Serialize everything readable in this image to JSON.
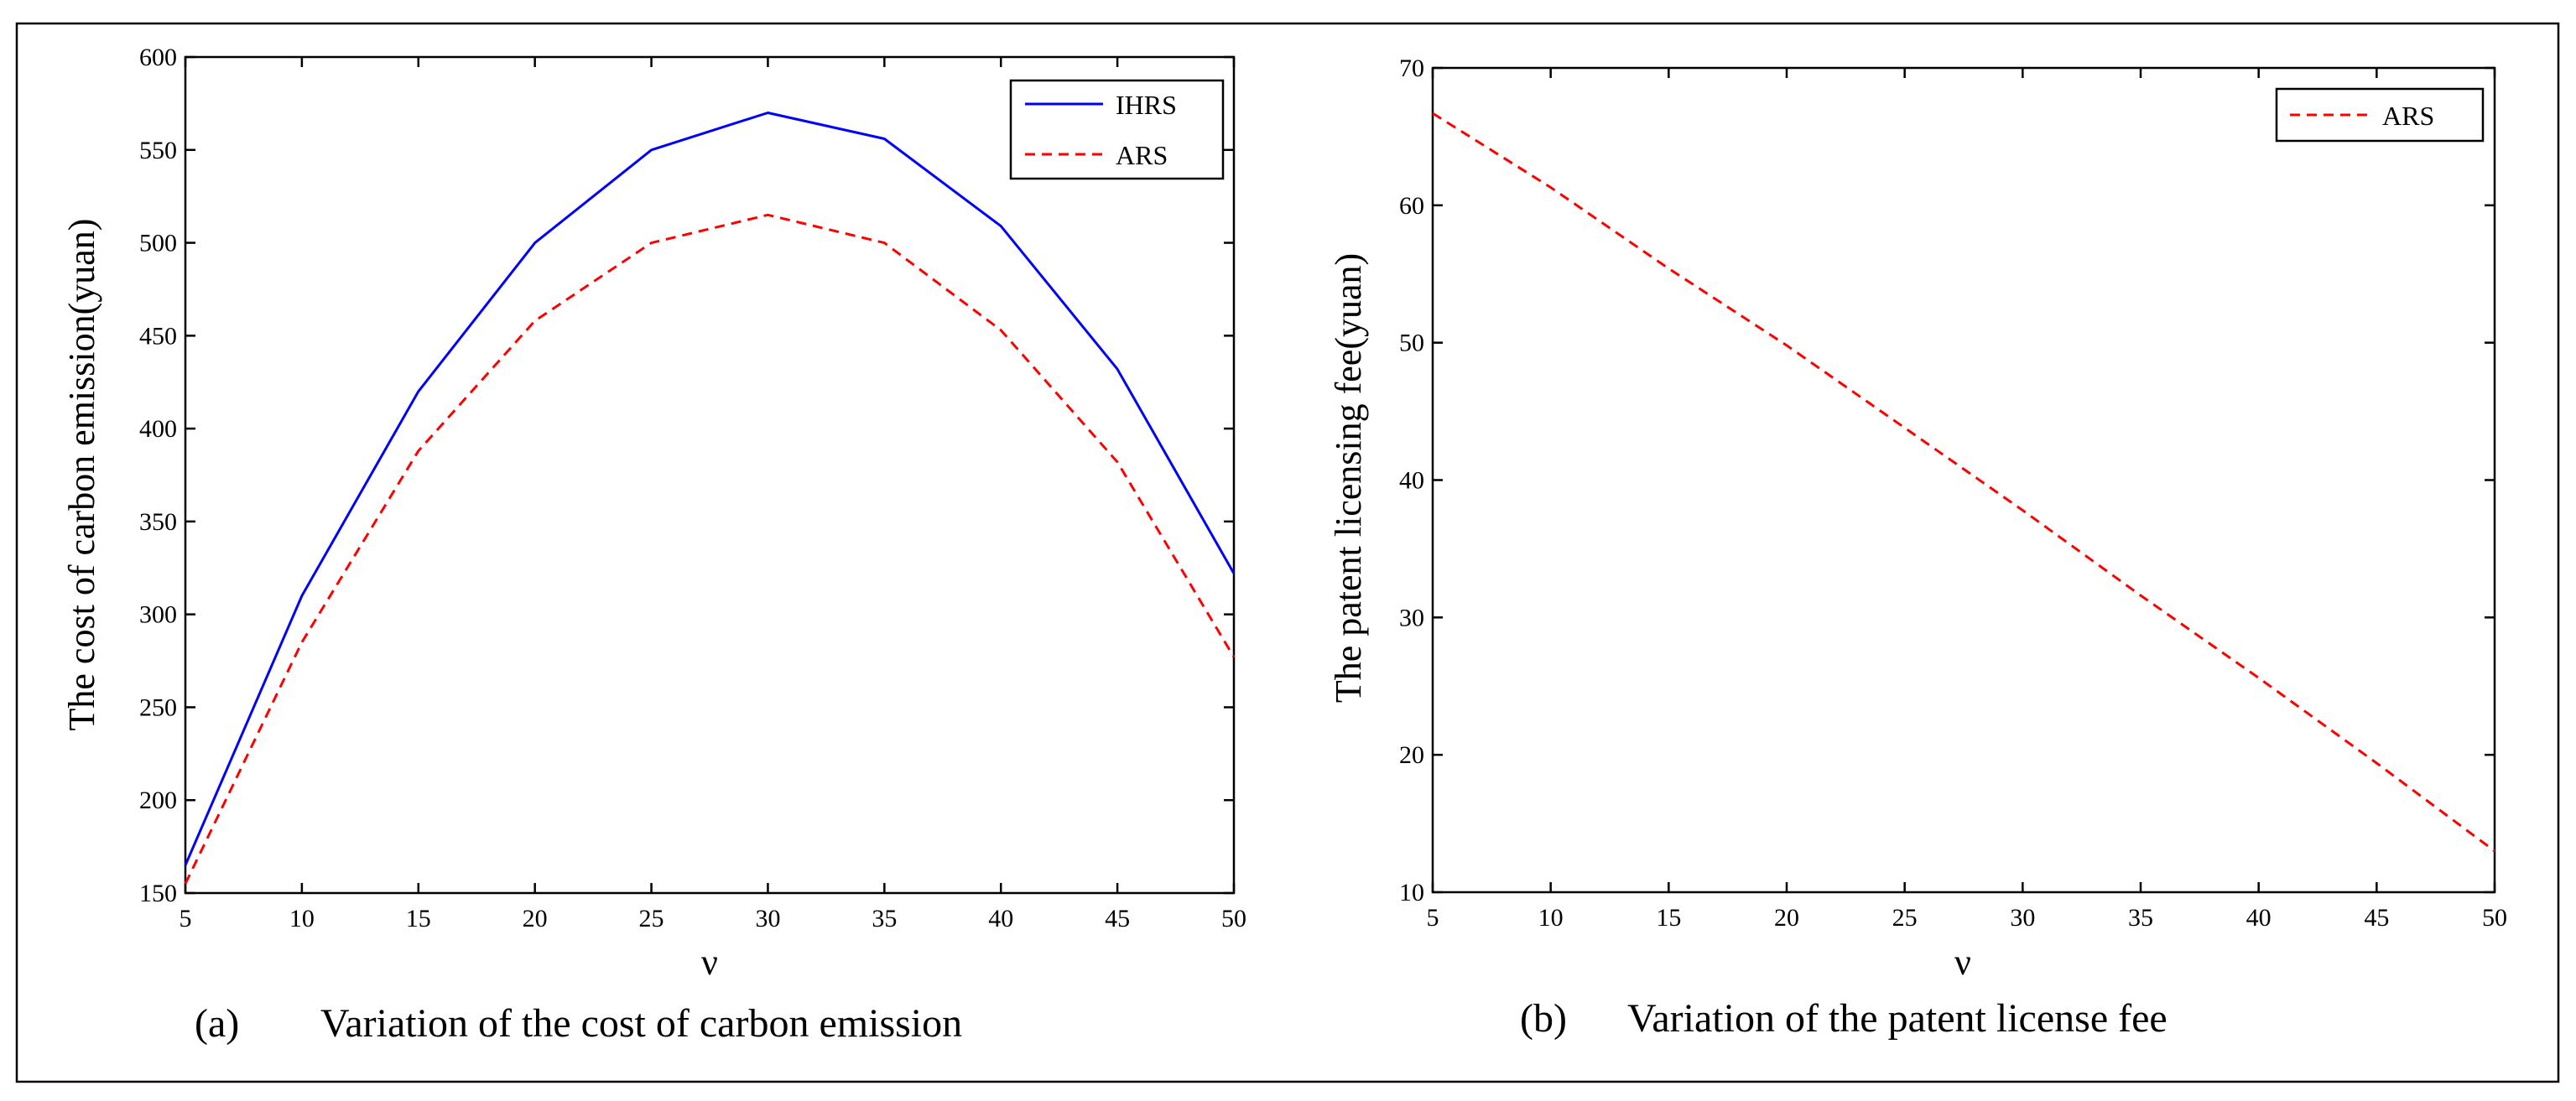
{
  "chart_data": [
    {
      "type": "line",
      "caption_label": "(a)",
      "caption_text": "Variation of the cost of carbon emission",
      "title": "",
      "xlabel": "ν",
      "ylabel": "The cost of carbon emission(yuan)",
      "xlim": [
        5,
        50
      ],
      "ylim": [
        150,
        600
      ],
      "xticks": [
        5,
        10,
        15,
        20,
        25,
        30,
        35,
        40,
        45,
        50
      ],
      "yticks": [
        150,
        200,
        250,
        300,
        350,
        400,
        450,
        500,
        550,
        600
      ],
      "legend_position": "top-right",
      "series": [
        {
          "name": "IHRS",
          "color": "#0000ff",
          "style": "solid",
          "x": [
            5,
            10,
            15,
            20,
            25,
            30,
            35,
            40,
            45,
            50
          ],
          "y": [
            165,
            310,
            420,
            500,
            550,
            570,
            556,
            509,
            432,
            322
          ]
        },
        {
          "name": "ARS",
          "color": "#ff0000",
          "style": "dashed",
          "x": [
            5,
            10,
            15,
            20,
            25,
            30,
            35,
            40,
            45,
            50
          ],
          "y": [
            155,
            285,
            388,
            458,
            500,
            515,
            500,
            453,
            382,
            277
          ]
        }
      ]
    },
    {
      "type": "line",
      "caption_label": "(b)",
      "caption_text": "Variation of the patent license fee",
      "title": "",
      "xlabel": "ν",
      "ylabel": "The patent licensing fee(yuan)",
      "xlim": [
        5,
        50
      ],
      "ylim": [
        10,
        70
      ],
      "xticks": [
        5,
        10,
        15,
        20,
        25,
        30,
        35,
        40,
        45,
        50
      ],
      "yticks": [
        10,
        20,
        30,
        40,
        50,
        60,
        70
      ],
      "legend_position": "top-right",
      "series": [
        {
          "name": "ARS",
          "color": "#ff0000",
          "style": "dashed",
          "x": [
            5,
            10,
            15,
            20,
            25,
            30,
            35,
            40,
            45,
            50
          ],
          "y": [
            66.7,
            61.3,
            55.4,
            49.8,
            43.8,
            37.8,
            31.6,
            25.6,
            19.4,
            13.0
          ]
        }
      ]
    }
  ]
}
